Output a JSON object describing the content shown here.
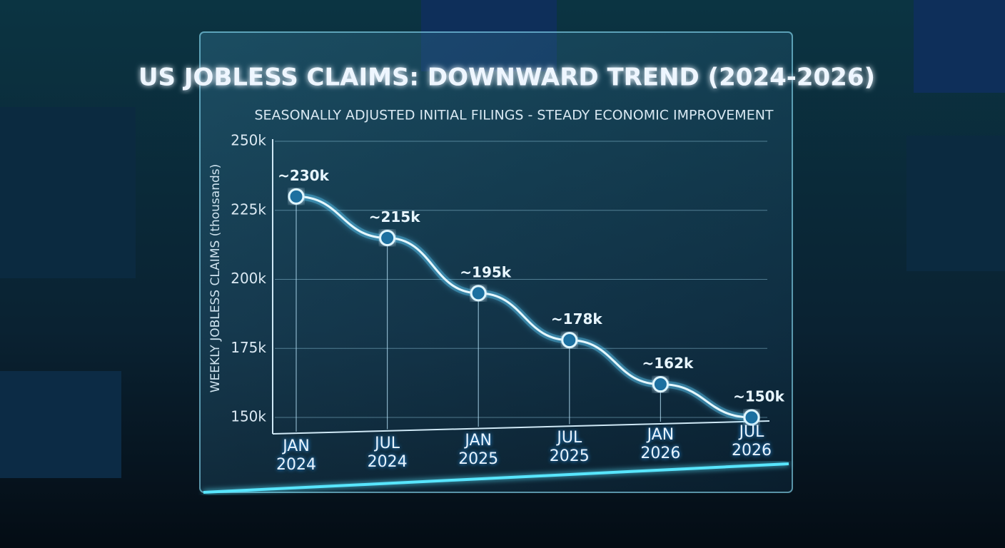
{
  "chart_data": {
    "type": "line",
    "title": "US JOBLESS CLAIMS: DOWNWARD TREND (2024-2026)",
    "subtitle": "SEASONALLY ADJUSTED INITIAL FILINGS - STEADY ECONOMIC IMPROVEMENT",
    "y_label": "WEEKLY JOBLESS CLAIMS (thousands)",
    "categories": [
      "JAN 2024",
      "JUL 2024",
      "JAN 2025",
      "JUL 2025",
      "JAN 2026",
      "JUL 2026"
    ],
    "values": [
      230,
      215,
      195,
      178,
      162,
      150
    ],
    "value_labels": [
      "~230k",
      "~215k",
      "~195k",
      "~178k",
      "~162k",
      "~150k"
    ],
    "color": "#5fd0ff",
    "ylim": [
      150,
      250
    ],
    "yticks": [
      {
        "value": 150,
        "label": "150k"
      },
      {
        "value": 175,
        "label": "175k"
      },
      {
        "value": 200,
        "label": "200k"
      },
      {
        "value": 225,
        "label": "225k"
      },
      {
        "value": 250,
        "label": "250k"
      }
    ],
    "grid": true
  }
}
